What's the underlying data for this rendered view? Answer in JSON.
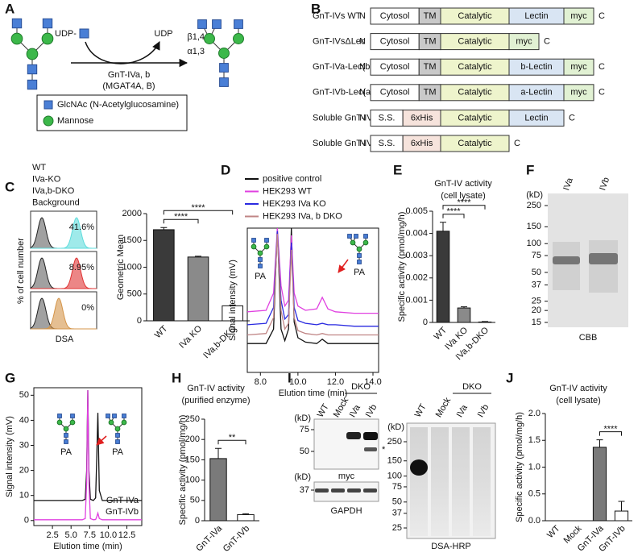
{
  "panel_labels": [
    "A",
    "B",
    "C",
    "D",
    "E",
    "F",
    "G",
    "H",
    "I",
    "J"
  ],
  "scheme": {
    "donor": "UDP-",
    "product": "UDP",
    "linkage_1": "β1,4",
    "linkage_2": "α1,3",
    "enzyme": "GnT-IVa, b",
    "genes": "(MGAT4A, B)",
    "legend": [
      "GlcNAc (N-Acetylglucosamine)",
      "Mannose"
    ]
  },
  "constructs": {
    "n_label": "N",
    "c_label": "C",
    "rows": [
      {
        "name": "GnT-IVs WT",
        "domains": [
          {
            "label": "Cytosol",
            "color": "#ffffff"
          },
          {
            "label": "TM",
            "color": "#c9c9c9"
          },
          {
            "label": "Catalytic",
            "color": "#eef4cc"
          },
          {
            "label": "Lectin",
            "color": "#d9e5f3"
          },
          {
            "label": "myc",
            "color": "#e1f1d3"
          }
        ]
      },
      {
        "name": "GnT-IVsΔLec",
        "domains": [
          {
            "label": "Cytosol",
            "color": "#ffffff"
          },
          {
            "label": "TM",
            "color": "#c9c9c9"
          },
          {
            "label": "Catalytic",
            "color": "#eef4cc"
          },
          {
            "label": "myc",
            "color": "#e1f1d3"
          }
        ]
      },
      {
        "name": "GnT-IVa-Lec(b)",
        "domains": [
          {
            "label": "Cytosol",
            "color": "#ffffff"
          },
          {
            "label": "TM",
            "color": "#c9c9c9"
          },
          {
            "label": "Catalytic",
            "color": "#eef4cc"
          },
          {
            "label": "b-Lectin",
            "color": "#d9e5f3"
          },
          {
            "label": "myc",
            "color": "#e1f1d3"
          }
        ]
      },
      {
        "name": "GnT-IVb-Lec(a)",
        "domains": [
          {
            "label": "Cytosol",
            "color": "#ffffff"
          },
          {
            "label": "TM",
            "color": "#c9c9c9"
          },
          {
            "label": "Catalytic",
            "color": "#eef4cc"
          },
          {
            "label": "a-Lectin",
            "color": "#d9e5f3"
          },
          {
            "label": "myc",
            "color": "#e1f1d3"
          }
        ]
      },
      {
        "name": "Soluble GnT-IV",
        "domains": [
          {
            "label": "S.S.",
            "color": "#ffffff"
          },
          {
            "label": "6xHis",
            "color": "#f6e3dc"
          },
          {
            "label": "Catalytic",
            "color": "#eef4cc"
          },
          {
            "label": "Lectin",
            "color": "#d9e5f3"
          }
        ]
      },
      {
        "name": "Soluble GnT-IVΔLec",
        "domains": [
          {
            "label": "S.S.",
            "color": "#ffffff"
          },
          {
            "label": "6xHis",
            "color": "#f6e3dc"
          },
          {
            "label": "Catalytic",
            "color": "#eef4cc"
          }
        ]
      }
    ]
  },
  "flow": {
    "legend": [
      {
        "name": "WT",
        "color": "#5fdcdc"
      },
      {
        "name": "IVa-KO",
        "color": "#e03535"
      },
      {
        "name": "IVa,b-DKO",
        "color": "#d4954a"
      },
      {
        "name": "Background",
        "color": "#222222"
      }
    ],
    "percentages": [
      {
        "label": "41.6%",
        "color": "#222222"
      },
      {
        "label": "8.95%",
        "color": "#d42a2a"
      },
      {
        "label": "0%",
        "color": "#a4a420"
      }
    ],
    "ylabel": "% of cell number",
    "xlabel": "DSA"
  },
  "gel_cbb": {
    "kd_label": "(kD)",
    "markers": [
      250,
      150,
      100,
      75,
      50,
      37,
      25,
      20,
      15
    ],
    "lanes": [
      "IVa",
      "IVb"
    ],
    "stain": "CBB"
  },
  "blots": {
    "group_label": "DKO",
    "lanes": [
      "WT",
      "Mock",
      "IVa",
      "IVb"
    ],
    "myc": {
      "kd_label": "(kD)",
      "markers": [
        75,
        50
      ],
      "label": "myc",
      "star": "*"
    },
    "gapdh": {
      "kd_label": "(kD)",
      "markers": [
        37
      ],
      "label": "GAPDH"
    },
    "dsa": {
      "kd_label": "(kD)",
      "markers": [
        250,
        150,
        100,
        75,
        50,
        37,
        25
      ],
      "label": "DSA-HRP"
    }
  },
  "chart_data": [
    {
      "type": "bar",
      "ylabel": "Geometric Mean",
      "categories": [
        "WT",
        "IVa KO",
        "IVa,b-DKO"
      ],
      "values": [
        1700,
        1190,
        280
      ],
      "errors": [
        40,
        15,
        15
      ],
      "colors": [
        "#3a3a3a",
        "#8a8a8a",
        "#ffffff"
      ],
      "ylim": [
        0,
        2000
      ],
      "yticks": [
        0,
        500,
        1000,
        1500,
        2000
      ],
      "significance": [
        {
          "between": [
            "WT",
            "IVa KO"
          ],
          "label": "****"
        },
        {
          "between": [
            "WT",
            "IVa,b-DKO"
          ],
          "label": "****"
        }
      ]
    },
    {
      "type": "bar",
      "title": [
        "GnT-IV activity",
        "(cell lysate)"
      ],
      "ylabel": "Specific activity (pmol/mg/h)",
      "categories": [
        "WT",
        "IVa KO",
        "IVa,b-DKO"
      ],
      "values": [
        0.0041,
        0.00065,
        2e-05
      ],
      "errors": [
        0.0004,
        5e-05,
        2e-05
      ],
      "colors": [
        "#3a3a3a",
        "#8a8a8a",
        "#ffffff"
      ],
      "ylim": [
        0,
        0.005
      ],
      "yticks": [
        0,
        0.001,
        0.002,
        0.003,
        0.004,
        0.005
      ],
      "significance": [
        {
          "between": [
            "WT",
            "IVa KO"
          ],
          "label": "****"
        },
        {
          "between": [
            "WT",
            "IVa,b-DKO"
          ],
          "label": "****"
        }
      ]
    },
    {
      "type": "bar",
      "title": [
        "GnT-IV activity",
        "(purified enzyme)"
      ],
      "ylabel": "Specific activity (pmol/mg/h)",
      "categories": [
        "GnT-IVa",
        "GnT-IVb"
      ],
      "values": [
        153,
        15
      ],
      "errors": [
        25,
        2
      ],
      "colors": [
        "#7a7a7a",
        "#ffffff"
      ],
      "ylim": [
        0,
        250
      ],
      "yticks": [
        0,
        50,
        100,
        150,
        200,
        250
      ],
      "significance": [
        {
          "between": [
            "GnT-IVa",
            "GnT-IVb"
          ],
          "label": "**"
        }
      ]
    },
    {
      "type": "bar",
      "title": [
        "GnT-IV activity",
        "(cell lysate)"
      ],
      "ylabel": "Specific activity (pmol/mg/h)",
      "categories": [
        "WT",
        "Mock",
        "GnT-IVa",
        "GnT-IVb"
      ],
      "values": [
        0,
        0,
        1.37,
        0.18
      ],
      "errors": [
        0,
        0,
        0.14,
        0.18
      ],
      "colors": [
        "#7a7a7a",
        "#7a7a7a",
        "#7a7a7a",
        "#ffffff"
      ],
      "ylim": [
        0,
        2
      ],
      "yticks": [
        {
          "value": 0,
          "label": "0.0"
        },
        {
          "value": 0.5,
          "label": "0.5"
        },
        {
          "value": 1,
          "label": "1.0"
        },
        {
          "value": 1.5,
          "label": "1.5"
        },
        {
          "value": 2,
          "label": "2.0"
        }
      ],
      "significance": [
        {
          "between": [
            "GnT-IVa",
            "GnT-IVb"
          ],
          "label": "****"
        }
      ]
    },
    {
      "type": "line",
      "xlabel": "Elution time (min)",
      "ylabel": "Signal intensity (mV)",
      "annotations": [
        "PA",
        "PA"
      ],
      "x": [
        7.3,
        8.3,
        8.7,
        8.9,
        9.1,
        9.3,
        9.5,
        9.65,
        9.8,
        10.0,
        10.4,
        11.0,
        11.3,
        11.6,
        12.0,
        13.0,
        14.3
      ],
      "xlim": [
        7.3,
        14.3
      ],
      "xticks": [
        {
          "value": 8,
          "label": "8.0"
        },
        {
          "value": 10,
          "label": "10.0"
        },
        {
          "value": 12,
          "label": "12.0"
        },
        {
          "value": 14,
          "label": "14.0"
        }
      ],
      "ylim": [
        0,
        10
      ],
      "series": [
        {
          "name": "positive control",
          "color": "#111111",
          "values": [
            2.0,
            2.0,
            3.0,
            10,
            3.0,
            2.2,
            3.0,
            10,
            3.5,
            2.4,
            2.1,
            2.0,
            2.3,
            2.0,
            2.0,
            2.0,
            2.0
          ]
        },
        {
          "name": "HEK293 WT",
          "color": "#e040e0",
          "values": [
            4.2,
            4.3,
            5.5,
            10,
            6.0,
            4.6,
            5.0,
            9.5,
            5.5,
            4.6,
            4.3,
            4.4,
            5.2,
            4.4,
            4.2,
            4.1,
            4.1
          ]
        },
        {
          "name": "HEK293 IVa KO",
          "color": "#2a2ae0",
          "values": [
            3.3,
            3.4,
            4.5,
            9.8,
            5.0,
            3.7,
            4.0,
            9.0,
            4.5,
            3.6,
            3.4,
            3.3,
            3.4,
            3.3,
            3.3,
            3.2,
            3.2
          ]
        },
        {
          "name": "HEK293 IVa, b DKO",
          "color": "#c08585",
          "values": [
            2.6,
            2.7,
            3.8,
            9.6,
            4.3,
            3.0,
            3.4,
            8.5,
            3.8,
            2.9,
            2.7,
            2.6,
            2.7,
            2.6,
            2.6,
            2.6,
            2.6
          ]
        }
      ]
    },
    {
      "type": "line",
      "xlabel": "Elution time (min)",
      "ylabel": "Signal intensity (mV)",
      "annotations": [
        "PA",
        "PA"
      ],
      "x": [
        0,
        6.5,
        6.9,
        7.1,
        7.25,
        7.4,
        7.6,
        8.0,
        8.3,
        8.45,
        8.6,
        8.8,
        9.2,
        10,
        14.5
      ],
      "xlim": [
        0,
        14.5
      ],
      "xticks": [
        2.5,
        {
          "value": 5,
          "label": "5.0"
        },
        7.5,
        {
          "value": 10,
          "label": "10.0"
        },
        12.5
      ],
      "ylim": [
        -2,
        53
      ],
      "yticks": [
        0,
        10,
        20,
        30,
        40,
        50
      ],
      "series": [
        {
          "name": "GnT-IVa",
          "color": "#111111",
          "values": [
            8,
            8,
            8.5,
            20,
            52,
            20,
            8.5,
            8,
            9,
            25,
            43,
            12,
            8,
            8,
            8
          ]
        },
        {
          "name": "GnT-IVb",
          "color": "#e040e0",
          "values": [
            0.3,
            0.3,
            0.8,
            15,
            52,
            15,
            0.8,
            0.3,
            0.4,
            1.5,
            3,
            0.8,
            0.3,
            0.3,
            0.3
          ]
        }
      ]
    }
  ]
}
